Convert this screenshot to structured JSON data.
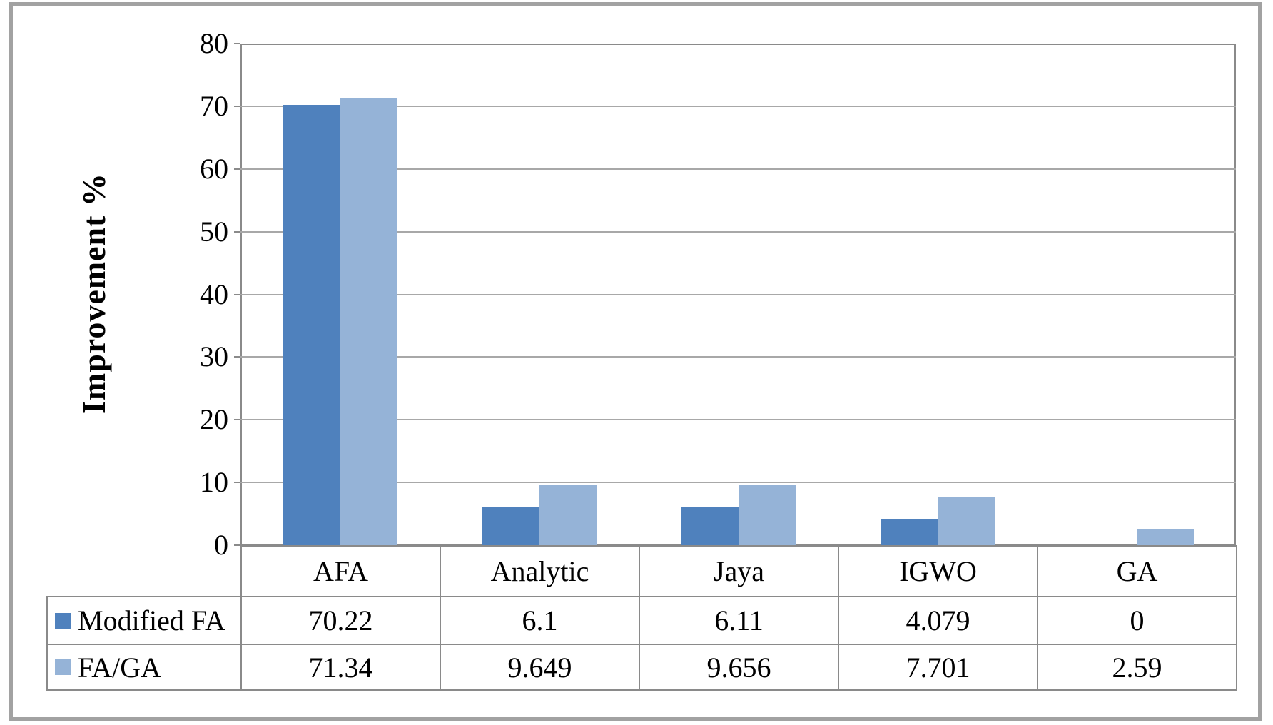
{
  "chart_data": {
    "type": "bar",
    "title": "",
    "xlabel": "",
    "ylabel": "Improvement %",
    "categories": [
      "AFA",
      "Analytic",
      "Jaya",
      "IGWO",
      "GA"
    ],
    "series": [
      {
        "name": "Modified FA",
        "color": "#4F81BD",
        "values": [
          70.22,
          6.1,
          6.11,
          4.079,
          0
        ]
      },
      {
        "name": "FA/GA",
        "color": "#95B3D7",
        "values": [
          71.34,
          9.649,
          9.656,
          7.701,
          2.59
        ]
      }
    ],
    "ylim": [
      0,
      80
    ],
    "ytick_step": 10,
    "ytick_labels": [
      "0",
      "10",
      "20",
      "30",
      "40",
      "50",
      "60",
      "70",
      "80"
    ],
    "grid": "horizontal",
    "legend_position": "left-of-data-table",
    "data_table_shown": true
  },
  "colors": {
    "series_dark": "#4F81BD",
    "series_light": "#95B3D7",
    "gridline": "#a8a8a8",
    "plot_border": "#8a8a8a",
    "figure_border": "#a2a2a2",
    "text": "#000000"
  }
}
